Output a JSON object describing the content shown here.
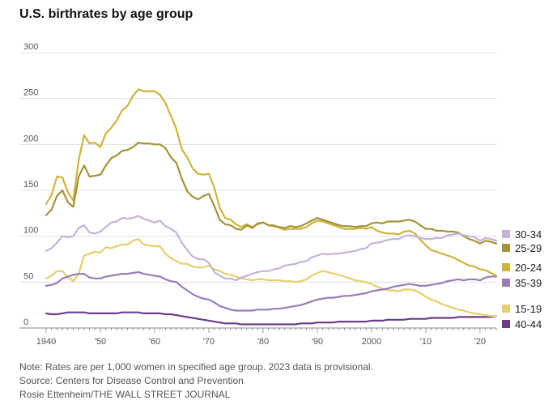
{
  "page": {
    "title": "U.S. birthrates by age group",
    "note": "Note: Rates are per 1,000 women in specified age group. 2023 data is provisional.",
    "source": "Source: Centers for Disease Control and Prevention",
    "credit": "Rosie Ettenheim/THE WALL STREET JOURNAL"
  },
  "chart_data": {
    "type": "line",
    "title": "U.S. birthrates by age group",
    "xlabel": "",
    "ylabel": "",
    "xlim": [
      1940,
      2023
    ],
    "ylim": [
      0,
      300
    ],
    "grid": true,
    "legend_position": "right",
    "y_ticks": [
      0,
      50,
      100,
      150,
      200,
      250,
      300
    ],
    "y_tick_labels": [
      "0",
      "50",
      "100",
      "150",
      "200",
      "250",
      "300"
    ],
    "x_ticks": [
      1940,
      1950,
      1960,
      1970,
      1980,
      1990,
      2000,
      2010,
      2020
    ],
    "x_tick_labels": [
      "1940",
      "'50",
      "'60",
      "'70",
      "'80",
      "'90",
      "2000",
      "'10",
      "'20"
    ],
    "series": [
      {
        "name": "30-34",
        "color": "#c5b3d6",
        "x": [
          1940,
          1941,
          1942,
          1943,
          1944,
          1945,
          1946,
          1947,
          1948,
          1949,
          1950,
          1951,
          1952,
          1953,
          1954,
          1955,
          1956,
          1957,
          1958,
          1959,
          1960,
          1961,
          1962,
          1963,
          1964,
          1965,
          1966,
          1967,
          1968,
          1969,
          1970,
          1971,
          1972,
          1973,
          1974,
          1975,
          1976,
          1977,
          1978,
          1979,
          1980,
          1981,
          1982,
          1983,
          1984,
          1985,
          1986,
          1987,
          1988,
          1989,
          1990,
          1991,
          1992,
          1993,
          1994,
          1995,
          1996,
          1997,
          1998,
          1999,
          2000,
          2001,
          2002,
          2003,
          2004,
          2005,
          2006,
          2007,
          2008,
          2009,
          2010,
          2011,
          2012,
          2013,
          2014,
          2015,
          2016,
          2017,
          2018,
          2019,
          2020,
          2021,
          2022,
          2023
        ],
        "values": [
          84,
          87,
          93,
          100,
          99,
          100,
          109,
          112,
          104,
          103,
          105,
          110,
          115,
          116,
          120,
          119,
          120,
          122,
          119,
          117,
          115,
          117,
          111,
          108,
          104,
          93,
          85,
          78,
          75,
          75,
          71,
          61,
          57,
          54,
          54,
          52,
          55,
          57,
          59,
          61,
          62,
          62,
          64,
          65,
          68,
          69,
          70,
          72,
          73,
          77,
          79,
          81,
          80,
          81,
          81,
          82,
          83,
          84,
          86,
          87,
          92,
          93,
          94,
          96,
          97,
          97,
          100,
          101,
          100,
          98,
          97,
          97,
          98,
          98,
          101,
          102,
          103,
          101,
          100,
          99,
          95,
          98,
          97,
          95
        ]
      },
      {
        "name": "25-29",
        "color": "#a49438",
        "x": [
          1940,
          1941,
          1942,
          1943,
          1944,
          1945,
          1946,
          1947,
          1948,
          1949,
          1950,
          1951,
          1952,
          1953,
          1954,
          1955,
          1956,
          1957,
          1958,
          1959,
          1960,
          1961,
          1962,
          1963,
          1964,
          1965,
          1966,
          1967,
          1968,
          1969,
          1970,
          1971,
          1972,
          1973,
          1974,
          1975,
          1976,
          1977,
          1978,
          1979,
          1980,
          1981,
          1982,
          1983,
          1984,
          1985,
          1986,
          1987,
          1988,
          1989,
          1990,
          1991,
          1992,
          1993,
          1994,
          1995,
          1996,
          1997,
          1998,
          1999,
          2000,
          2001,
          2002,
          2003,
          2004,
          2005,
          2006,
          2007,
          2008,
          2009,
          2010,
          2011,
          2012,
          2013,
          2014,
          2015,
          2016,
          2017,
          2018,
          2019,
          2020,
          2021,
          2022,
          2023
        ],
        "values": [
          123,
          129,
          144,
          150,
          137,
          132,
          165,
          177,
          165,
          166,
          167,
          177,
          185,
          188,
          193,
          194,
          197,
          202,
          201,
          201,
          200,
          200,
          196,
          186,
          180,
          163,
          149,
          143,
          140,
          144,
          146,
          133,
          118,
          113,
          112,
          108,
          107,
          112,
          109,
          114,
          115,
          112,
          111,
          110,
          109,
          111,
          110,
          111,
          114,
          117,
          120,
          118,
          116,
          114,
          112,
          111,
          111,
          110,
          111,
          111,
          114,
          115,
          114,
          116,
          116,
          116,
          117,
          118,
          116,
          112,
          108,
          108,
          106,
          106,
          105,
          105,
          104,
          100,
          97,
          95,
          92,
          95,
          94,
          92
        ]
      },
      {
        "name": "20-24",
        "color": "#cfb43b",
        "x": [
          1940,
          1941,
          1942,
          1943,
          1944,
          1945,
          1946,
          1947,
          1948,
          1949,
          1950,
          1951,
          1952,
          1953,
          1954,
          1955,
          1956,
          1957,
          1958,
          1959,
          1960,
          1961,
          1962,
          1963,
          1964,
          1965,
          1966,
          1967,
          1968,
          1969,
          1970,
          1971,
          1972,
          1973,
          1974,
          1975,
          1976,
          1977,
          1978,
          1979,
          1980,
          1981,
          1982,
          1983,
          1984,
          1985,
          1986,
          1987,
          1988,
          1989,
          1990,
          1991,
          1992,
          1993,
          1994,
          1995,
          1996,
          1997,
          1998,
          1999,
          2000,
          2001,
          2002,
          2003,
          2004,
          2005,
          2006,
          2007,
          2008,
          2009,
          2010,
          2011,
          2012,
          2013,
          2014,
          2015,
          2016,
          2017,
          2018,
          2019,
          2020,
          2021,
          2022,
          2023
        ],
        "values": [
          135,
          145,
          165,
          164,
          148,
          139,
          183,
          210,
          201,
          202,
          197,
          212,
          218,
          226,
          237,
          242,
          253,
          260,
          258,
          258,
          258,
          254,
          245,
          231,
          217,
          195,
          186,
          174,
          168,
          167,
          168,
          153,
          131,
          120,
          118,
          113,
          110,
          113,
          110,
          113,
          115,
          112,
          112,
          109,
          107,
          108,
          108,
          108,
          110,
          114,
          117,
          116,
          114,
          112,
          110,
          108,
          108,
          108,
          109,
          108,
          110,
          106,
          104,
          103,
          103,
          102,
          105,
          106,
          103,
          96,
          90,
          85,
          83,
          81,
          79,
          77,
          74,
          71,
          68,
          67,
          64,
          63,
          60,
          57
        ]
      },
      {
        "name": "35-39",
        "color": "#9a7cb8",
        "x": [
          1940,
          1941,
          1942,
          1943,
          1944,
          1945,
          1946,
          1947,
          1948,
          1949,
          1950,
          1951,
          1952,
          1953,
          1954,
          1955,
          1956,
          1957,
          1958,
          1959,
          1960,
          1961,
          1962,
          1963,
          1964,
          1965,
          1966,
          1967,
          1968,
          1969,
          1970,
          1971,
          1972,
          1973,
          1974,
          1975,
          1976,
          1977,
          1978,
          1979,
          1980,
          1981,
          1982,
          1983,
          1984,
          1985,
          1986,
          1987,
          1988,
          1989,
          1990,
          1991,
          1992,
          1993,
          1994,
          1995,
          1996,
          1997,
          1998,
          1999,
          2000,
          2001,
          2002,
          2003,
          2004,
          2005,
          2006,
          2007,
          2008,
          2009,
          2010,
          2011,
          2012,
          2013,
          2014,
          2015,
          2016,
          2017,
          2018,
          2019,
          2020,
          2021,
          2022,
          2023
        ],
        "values": [
          46,
          47,
          49,
          54,
          56,
          58,
          59,
          59,
          55,
          54,
          54,
          56,
          57,
          58,
          59,
          59,
          60,
          61,
          59,
          58,
          57,
          56,
          53,
          51,
          50,
          45,
          41,
          37,
          34,
          32,
          31,
          28,
          24,
          22,
          20,
          19,
          19,
          19,
          19,
          20,
          20,
          20,
          21,
          21,
          22,
          23,
          24,
          25,
          27,
          29,
          31,
          32,
          33,
          33,
          34,
          35,
          35,
          36,
          37,
          38,
          40,
          41,
          42,
          43,
          45,
          46,
          47,
          48,
          47,
          46,
          46,
          47,
          48,
          49,
          51,
          52,
          53,
          52,
          53,
          53,
          52,
          55,
          56,
          56
        ]
      },
      {
        "name": "15-19",
        "color": "#e6cf6e",
        "x": [
          1940,
          1941,
          1942,
          1943,
          1944,
          1945,
          1946,
          1947,
          1948,
          1949,
          1950,
          1951,
          1952,
          1953,
          1954,
          1955,
          1956,
          1957,
          1958,
          1959,
          1960,
          1961,
          1962,
          1963,
          1964,
          1965,
          1966,
          1967,
          1968,
          1969,
          1970,
          1971,
          1972,
          1973,
          1974,
          1975,
          1976,
          1977,
          1978,
          1979,
          1980,
          1981,
          1982,
          1983,
          1984,
          1985,
          1986,
          1987,
          1988,
          1989,
          1990,
          1991,
          1992,
          1993,
          1994,
          1995,
          1996,
          1997,
          1998,
          1999,
          2000,
          2001,
          2002,
          2003,
          2004,
          2005,
          2006,
          2007,
          2008,
          2009,
          2010,
          2011,
          2012,
          2013,
          2014,
          2015,
          2016,
          2017,
          2018,
          2019,
          2020,
          2021,
          2022,
          2023
        ],
        "values": [
          54,
          57,
          62,
          62,
          55,
          51,
          59,
          79,
          81,
          83,
          82,
          88,
          87,
          89,
          91,
          91,
          95,
          97,
          91,
          90,
          89,
          89,
          81,
          76,
          73,
          70,
          70,
          67,
          66,
          66,
          68,
          64,
          62,
          59,
          58,
          56,
          54,
          53,
          52,
          53,
          53,
          52,
          52,
          52,
          51,
          51,
          50,
          51,
          53,
          57,
          60,
          62,
          61,
          59,
          58,
          56,
          54,
          52,
          51,
          50,
          48,
          45,
          43,
          41,
          41,
          40,
          42,
          42,
          41,
          38,
          34,
          31,
          29,
          26,
          24,
          22,
          20,
          19,
          17,
          16,
          15,
          14,
          13,
          13
        ]
      },
      {
        "name": "40-44",
        "color": "#6a3d8a",
        "x": [
          1940,
          1941,
          1942,
          1943,
          1944,
          1945,
          1946,
          1947,
          1948,
          1949,
          1950,
          1951,
          1952,
          1953,
          1954,
          1955,
          1956,
          1957,
          1958,
          1959,
          1960,
          1961,
          1962,
          1963,
          1964,
          1965,
          1966,
          1967,
          1968,
          1969,
          1970,
          1971,
          1972,
          1973,
          1974,
          1975,
          1976,
          1977,
          1978,
          1979,
          1980,
          1981,
          1982,
          1983,
          1984,
          1985,
          1986,
          1987,
          1988,
          1989,
          1990,
          1991,
          1992,
          1993,
          1994,
          1995,
          1996,
          1997,
          1998,
          1999,
          2000,
          2001,
          2002,
          2003,
          2004,
          2005,
          2006,
          2007,
          2008,
          2009,
          2010,
          2011,
          2012,
          2013,
          2014,
          2015,
          2016,
          2017,
          2018,
          2019,
          2020,
          2021,
          2022,
          2023
        ],
        "values": [
          16,
          15,
          15,
          16,
          17,
          17,
          17,
          17,
          16,
          16,
          16,
          16,
          16,
          16,
          17,
          17,
          17,
          17,
          16,
          16,
          16,
          16,
          15,
          15,
          14,
          13,
          12,
          11,
          10,
          9,
          8,
          7,
          6,
          5,
          5,
          5,
          4,
          4,
          4,
          4,
          4,
          4,
          4,
          4,
          4,
          4,
          4,
          5,
          5,
          5,
          6,
          6,
          6,
          6,
          7,
          7,
          7,
          7,
          7,
          7,
          8,
          8,
          8,
          9,
          9,
          9,
          9,
          10,
          10,
          10,
          10,
          11,
          11,
          11,
          11,
          11,
          12,
          12,
          12,
          12,
          12,
          12,
          12,
          13
        ]
      }
    ]
  }
}
